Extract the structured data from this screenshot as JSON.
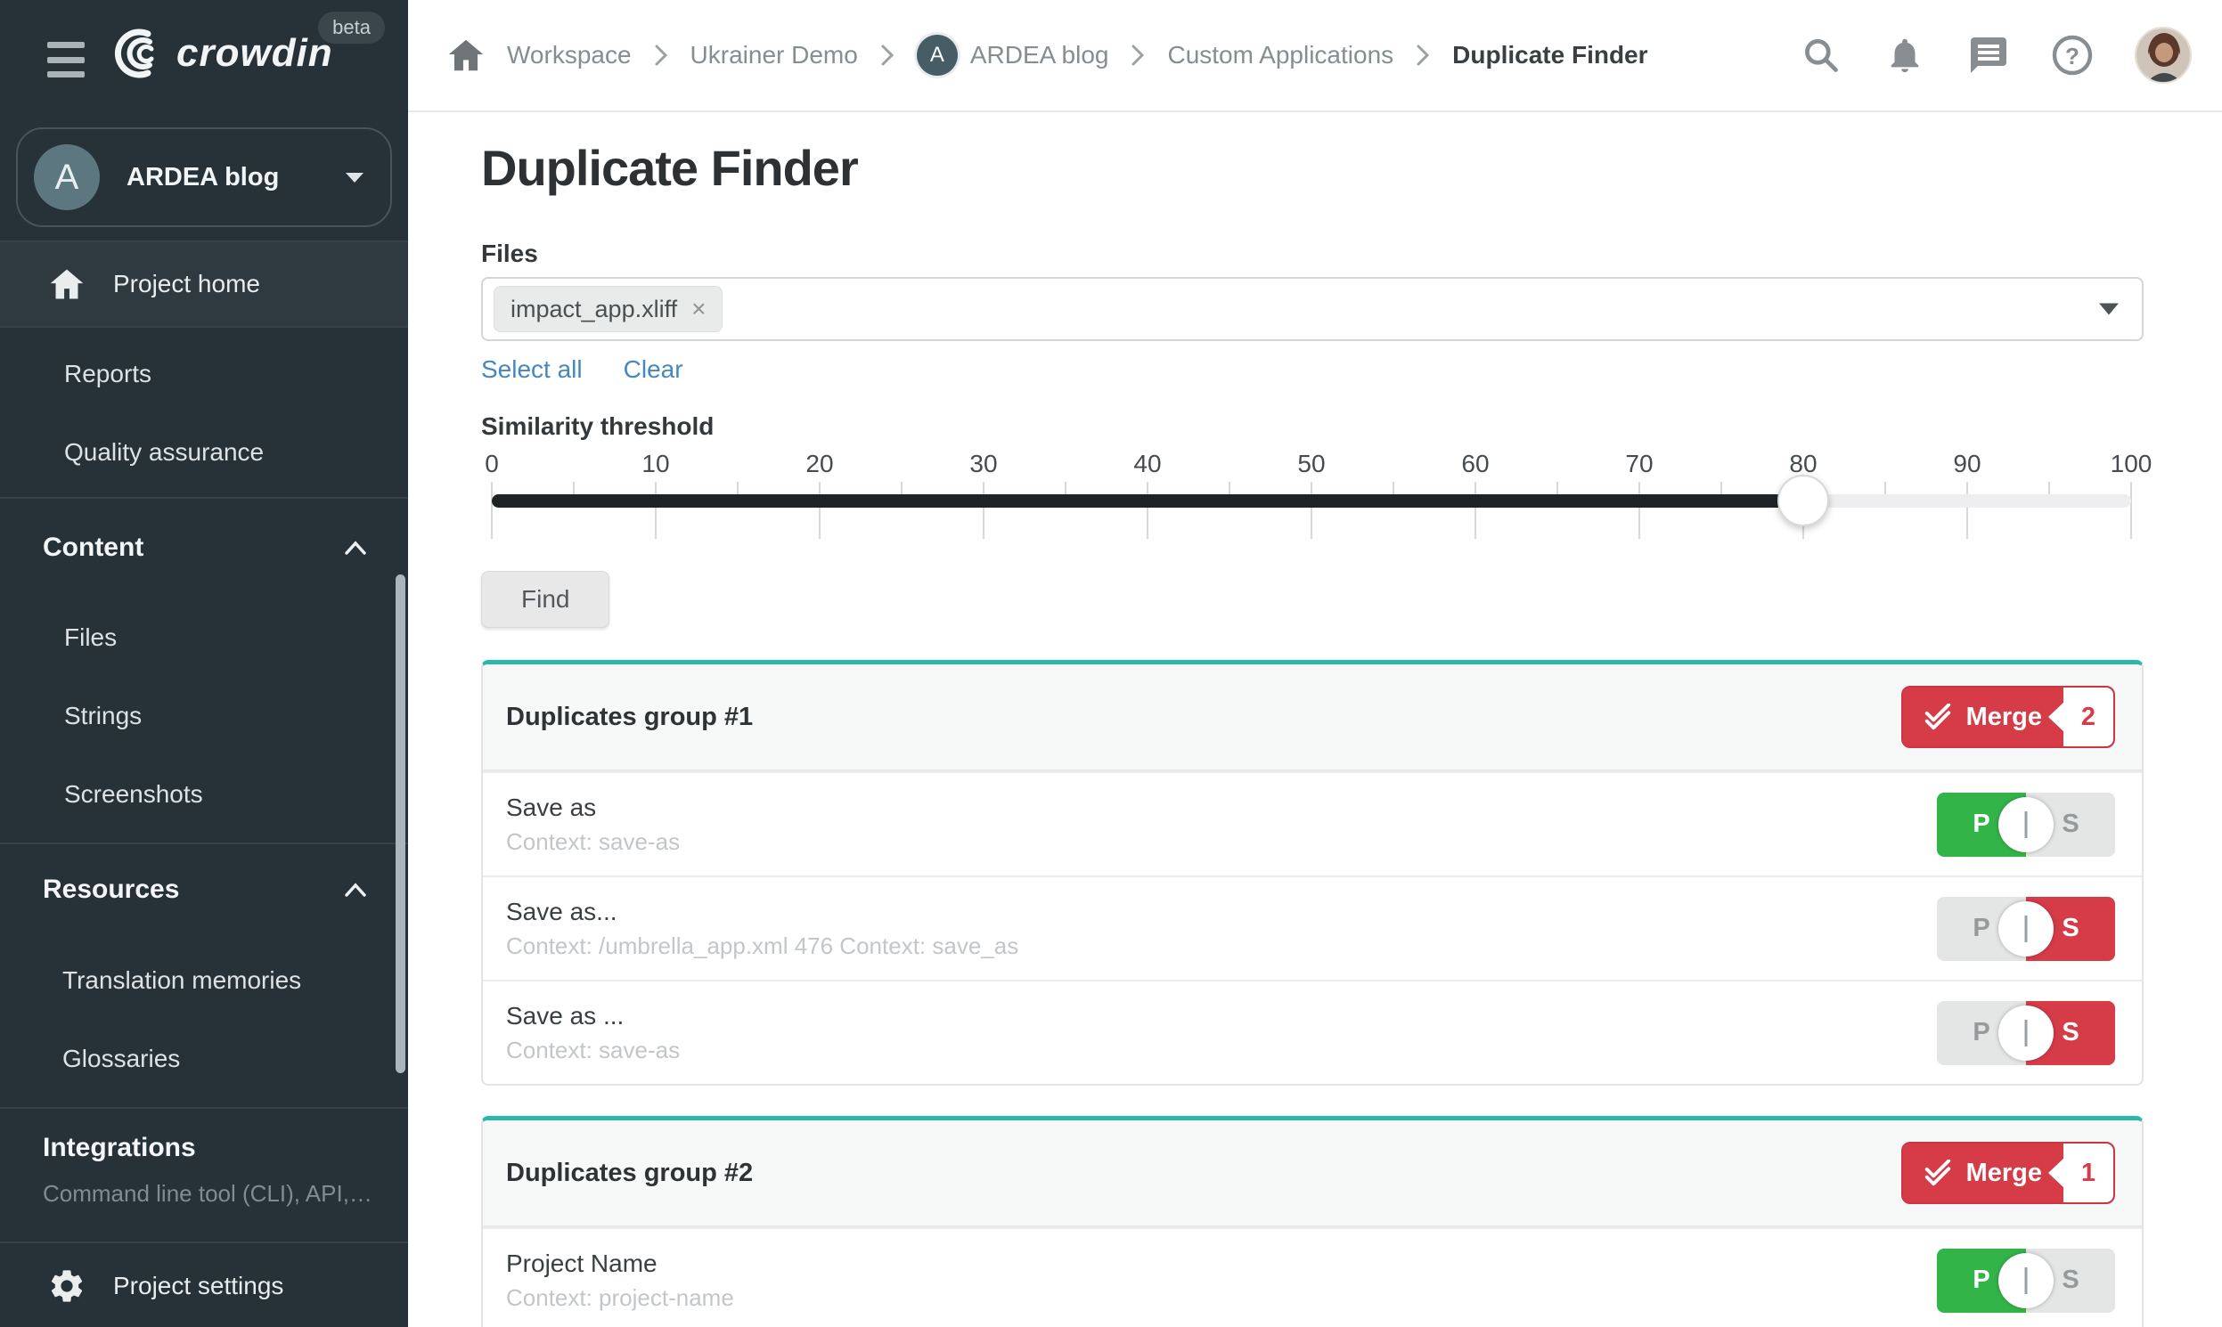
{
  "colors": {
    "sidebar_bg": "#263138",
    "accent_teal": "#2ab9a9",
    "danger_red": "#d53c48",
    "success_green": "#33b449",
    "link_blue": "#4687c0"
  },
  "sidebar": {
    "logo_text": "crowdin",
    "beta_badge": "beta",
    "project": {
      "initial": "A",
      "name": "ARDEA blog"
    },
    "home_item": "Project home",
    "reports_item": "Reports",
    "qa_item": "Quality assurance",
    "content_section": {
      "label": "Content",
      "items": [
        "Files",
        "Strings",
        "Screenshots"
      ]
    },
    "resources_section": {
      "label": "Resources",
      "items": [
        "Translation memories",
        "Glossaries"
      ]
    },
    "integrations_section": {
      "label": "Integrations",
      "note": "Command line tool (CLI), API, …"
    },
    "settings_item": "Project settings"
  },
  "topbar": {
    "breadcrumb": [
      "Workspace",
      "Ukrainer Demo",
      "ARDEA blog",
      "Custom Applications",
      "Duplicate Finder"
    ],
    "breadcrumb_avatar_initial": "A",
    "icons": [
      "search",
      "notifications",
      "messages",
      "help",
      "user-avatar"
    ]
  },
  "main": {
    "title": "Duplicate Finder",
    "files_label": "Files",
    "file_chips": [
      "impact_app.xliff"
    ],
    "chip_remove": "×",
    "select_all_label": "Select all",
    "clear_label": "Clear",
    "threshold_label": "Similarity threshold",
    "slider": {
      "min": 0,
      "max": 100,
      "value": 80,
      "tick_labels": [
        "0",
        "10",
        "20",
        "30",
        "40",
        "50",
        "60",
        "70",
        "80",
        "90",
        "100"
      ]
    },
    "find_label": "Find",
    "toggle": {
      "primary": "P",
      "secondary": "S"
    },
    "merge_label": "Merge",
    "groups": [
      {
        "title": "Duplicates group #1",
        "merge_count": "2",
        "rows": [
          {
            "title": "Save as",
            "context": "Context: save-as",
            "selected": "P"
          },
          {
            "title": "Save as...",
            "context": "Context: /umbrella_app.xml 476 Context: save_as",
            "selected": "S"
          },
          {
            "title": "Save as ...",
            "context": "Context: save-as",
            "selected": "S"
          }
        ]
      },
      {
        "title": "Duplicates group #2",
        "merge_count": "1",
        "rows": [
          {
            "title": "Project Name",
            "context": "Context: project-name",
            "selected": "P"
          }
        ]
      }
    ]
  }
}
